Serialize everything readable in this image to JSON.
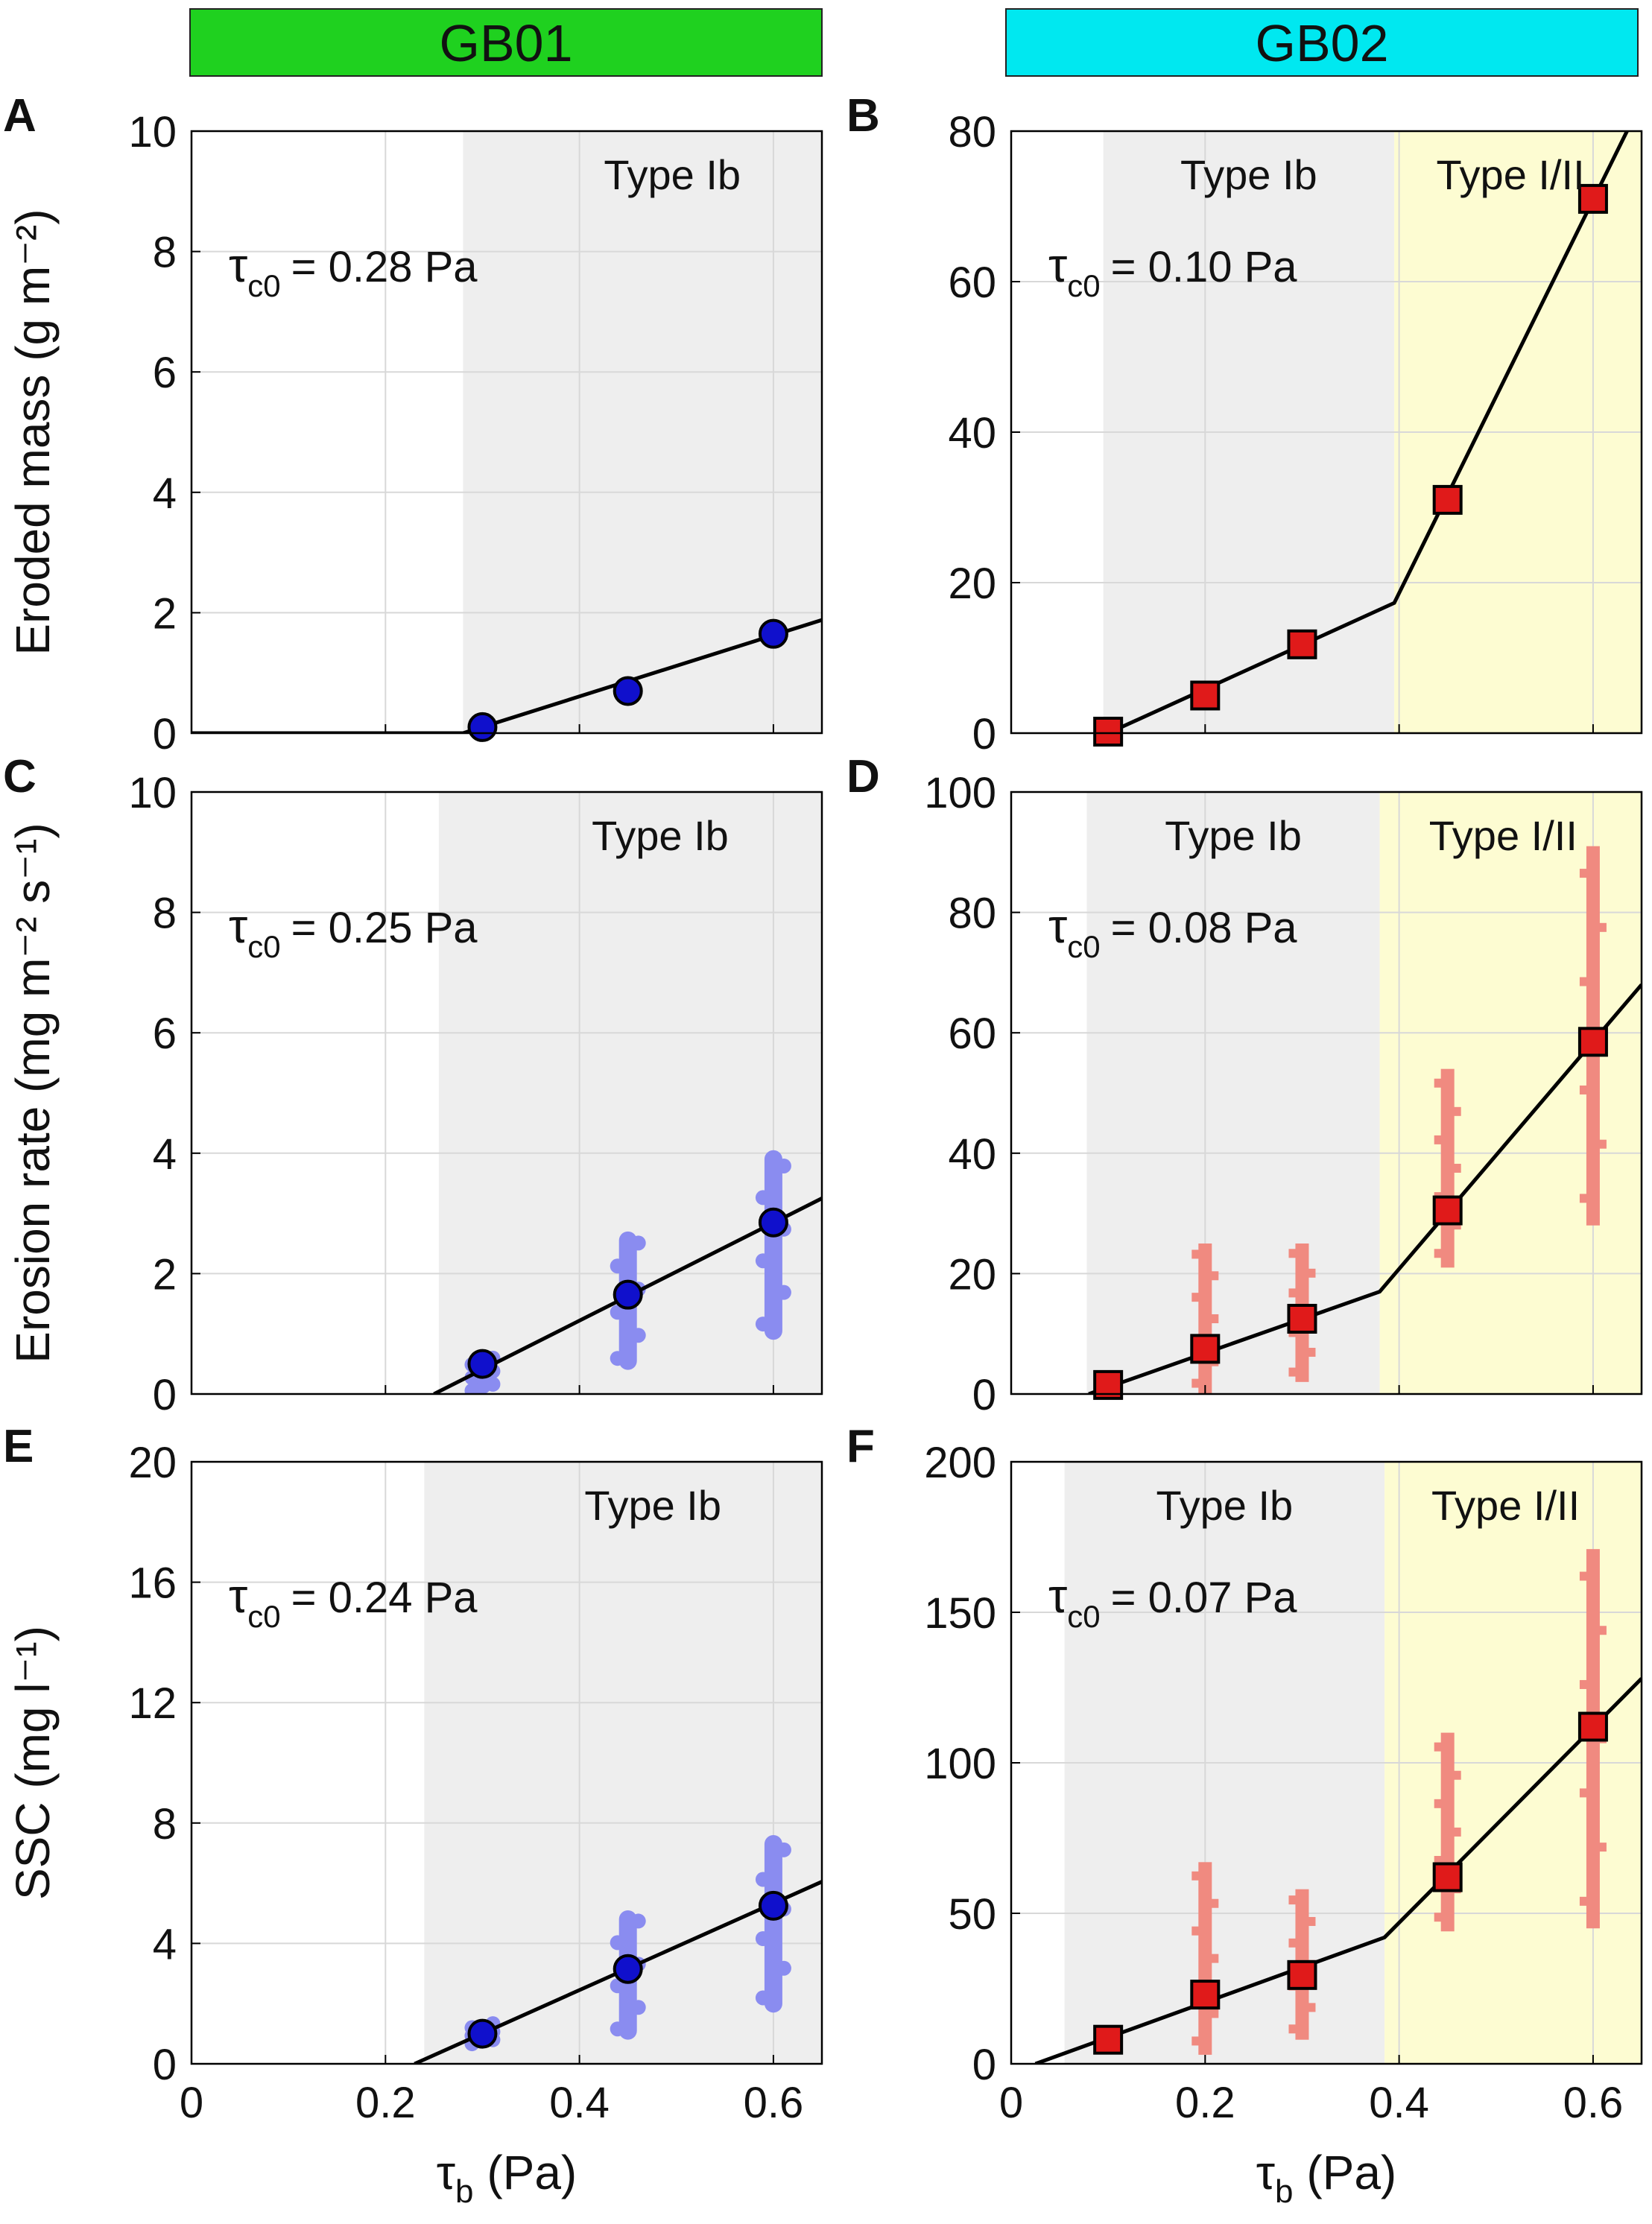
{
  "headers": [
    {
      "label": "GB01",
      "color": "#1fd11f"
    },
    {
      "label": "GB02",
      "color": "#00e8f0"
    }
  ],
  "colors": {
    "gb01_marker": "#1010cc",
    "gb01_scatter": "#8a8cf0",
    "gb02_marker": "#e01a1a",
    "gb02_scatter": "#f08a80",
    "typeIb_shade": "#eeeeee",
    "typeI_II_shade": "#fdfcd2"
  },
  "chart_data": [
    {
      "panel": "A",
      "site": "GB01",
      "type": "scatter",
      "ylabel": "Eroded mass (g m⁻²)",
      "xlabel": "",
      "xlim": [
        0,
        0.65
      ],
      "ylim": [
        0,
        10
      ],
      "xticks": [
        "0",
        "0.2",
        "0.4",
        "0.6"
      ],
      "yticks": [
        0,
        2,
        4,
        6,
        8,
        10
      ],
      "annotation": {
        "symbol": "τ",
        "sub": "c0",
        "text": "= 0.28 Pa"
      },
      "regions": [
        {
          "label": "Type Ib",
          "from": 0.28,
          "to": 0.65,
          "kind": "Ib"
        }
      ],
      "points": [
        {
          "x": 0.3,
          "y": 0.1
        },
        {
          "x": 0.45,
          "y": 0.7
        },
        {
          "x": 0.6,
          "y": 1.65
        }
      ],
      "fit": [
        [
          0,
          0
        ],
        [
          0.28,
          0
        ],
        [
          0.65,
          1.88
        ]
      ],
      "spread": []
    },
    {
      "panel": "B",
      "site": "GB02",
      "type": "scatter",
      "ylabel": "",
      "xlabel": "",
      "xlim": [
        0,
        0.65
      ],
      "ylim": [
        0,
        80
      ],
      "xticks": [
        "0",
        "0.2",
        "0.4",
        "0.6"
      ],
      "yticks": [
        0,
        20,
        40,
        60,
        80
      ],
      "annotation": {
        "symbol": "τ",
        "sub": "c0",
        "text": "= 0.10 Pa"
      },
      "regions": [
        {
          "label": "Type Ib",
          "from": 0.095,
          "to": 0.395,
          "kind": "Ib"
        },
        {
          "label": "Type I/II",
          "from": 0.395,
          "to": 0.65,
          "kind": "I/II"
        }
      ],
      "points": [
        {
          "x": 0.1,
          "y": 0.2
        },
        {
          "x": 0.2,
          "y": 5.0
        },
        {
          "x": 0.3,
          "y": 11.8
        },
        {
          "x": 0.45,
          "y": 31.0
        },
        {
          "x": 0.6,
          "y": 71.0
        }
      ],
      "fit": [
        [
          0.1,
          0
        ],
        [
          0.395,
          17.3
        ],
        [
          0.635,
          80
        ]
      ],
      "spread": []
    },
    {
      "panel": "C",
      "site": "GB01",
      "type": "scatter",
      "ylabel": "Erosion rate (mg m⁻² s⁻¹)",
      "xlabel": "",
      "xlim": [
        0,
        0.65
      ],
      "ylim": [
        0,
        10
      ],
      "xticks": [
        "0",
        "0.2",
        "0.4",
        "0.6"
      ],
      "yticks": [
        0,
        2,
        4,
        6,
        8,
        10
      ],
      "annotation": {
        "symbol": "τ",
        "sub": "c0",
        "text": "= 0.25 Pa"
      },
      "regions": [
        {
          "label": "Type Ib",
          "from": 0.255,
          "to": 0.65,
          "kind": "Ib"
        }
      ],
      "points": [
        {
          "x": 0.3,
          "y": 0.5
        },
        {
          "x": 0.45,
          "y": 1.65
        },
        {
          "x": 0.6,
          "y": 2.85
        }
      ],
      "fit": [
        [
          0.25,
          0
        ],
        [
          0.65,
          3.25
        ]
      ],
      "spread": [
        {
          "x": 0.3,
          "ymin": 0.0,
          "ymax": 0.65
        },
        {
          "x": 0.45,
          "ymin": 0.4,
          "ymax": 2.7
        },
        {
          "x": 0.6,
          "ymin": 0.9,
          "ymax": 4.05
        }
      ]
    },
    {
      "panel": "D",
      "site": "GB02",
      "type": "scatter",
      "ylabel": "",
      "xlabel": "",
      "xlim": [
        0,
        0.65
      ],
      "ylim": [
        0,
        100
      ],
      "xticks": [
        "0",
        "0.2",
        "0.4",
        "0.6"
      ],
      "yticks": [
        0,
        20,
        40,
        60,
        80,
        100
      ],
      "annotation": {
        "symbol": "τ",
        "sub": "c0",
        "text": "= 0.08 Pa"
      },
      "regions": [
        {
          "label": "Type Ib",
          "from": 0.078,
          "to": 0.38,
          "kind": "Ib"
        },
        {
          "label": "Type I/II",
          "from": 0.38,
          "to": 0.65,
          "kind": "I/II"
        }
      ],
      "points": [
        {
          "x": 0.1,
          "y": 1.5
        },
        {
          "x": 0.2,
          "y": 7.5
        },
        {
          "x": 0.3,
          "y": 12.5
        },
        {
          "x": 0.45,
          "y": 30.5
        },
        {
          "x": 0.6,
          "y": 58.5
        }
      ],
      "fit": [
        [
          0.08,
          0
        ],
        [
          0.38,
          17.0
        ],
        [
          0.65,
          68.0
        ]
      ],
      "spread": [
        {
          "x": 0.2,
          "ymin": 0.0,
          "ymax": 25.0
        },
        {
          "x": 0.3,
          "ymin": 2.0,
          "ymax": 25.0
        },
        {
          "x": 0.45,
          "ymin": 21.0,
          "ymax": 54.0
        },
        {
          "x": 0.6,
          "ymin": 28.0,
          "ymax": 91.0
        }
      ]
    },
    {
      "panel": "E",
      "site": "GB01",
      "type": "scatter",
      "ylabel": "SSC (mg l⁻¹)",
      "xlabel": "τb (Pa)",
      "xlim": [
        0,
        0.65
      ],
      "ylim": [
        0,
        20
      ],
      "xticks": [
        "0",
        "0.2",
        "0.4",
        "0.6"
      ],
      "yticks": [
        0,
        4,
        8,
        12,
        16,
        20
      ],
      "annotation": {
        "symbol": "τ",
        "sub": "c0",
        "text": "= 0.24 Pa"
      },
      "regions": [
        {
          "label": "Type Ib",
          "from": 0.24,
          "to": 0.65,
          "kind": "Ib"
        }
      ],
      "points": [
        {
          "x": 0.3,
          "y": 1.0
        },
        {
          "x": 0.45,
          "y": 3.15
        },
        {
          "x": 0.6,
          "y": 5.25
        }
      ],
      "fit": [
        [
          0.23,
          0
        ],
        [
          0.65,
          6.05
        ]
      ],
      "spread": [
        {
          "x": 0.3,
          "ymin": 0.6,
          "ymax": 1.4
        },
        {
          "x": 0.45,
          "ymin": 0.8,
          "ymax": 5.1
        },
        {
          "x": 0.6,
          "ymin": 1.7,
          "ymax": 7.6
        }
      ]
    },
    {
      "panel": "F",
      "site": "GB02",
      "type": "scatter",
      "ylabel": "",
      "xlabel": "τb (Pa)",
      "xlim": [
        0,
        0.65
      ],
      "ylim": [
        0,
        200
      ],
      "xticks": [
        "0",
        "0.2",
        "0.4",
        "0.6"
      ],
      "yticks": [
        0,
        50,
        100,
        150,
        200
      ],
      "annotation": {
        "symbol": "τ",
        "sub": "c0",
        "text": "= 0.07 Pa"
      },
      "regions": [
        {
          "label": "Type Ib",
          "from": 0.055,
          "to": 0.385,
          "kind": "Ib"
        },
        {
          "label": "Type I/II",
          "from": 0.385,
          "to": 0.65,
          "kind": "I/II"
        }
      ],
      "points": [
        {
          "x": 0.1,
          "y": 8.0
        },
        {
          "x": 0.2,
          "y": 23.0
        },
        {
          "x": 0.3,
          "y": 29.5
        },
        {
          "x": 0.45,
          "y": 62.0
        },
        {
          "x": 0.6,
          "y": 112.0
        }
      ],
      "fit": [
        [
          0.025,
          0
        ],
        [
          0.385,
          42.0
        ],
        [
          0.65,
          128.0
        ]
      ],
      "spread": [
        {
          "x": 0.1,
          "ymin": 5.0,
          "ymax": 11.0
        },
        {
          "x": 0.2,
          "ymin": 3.0,
          "ymax": 67.0
        },
        {
          "x": 0.3,
          "ymin": 8.0,
          "ymax": 58.0
        },
        {
          "x": 0.45,
          "ymin": 44.0,
          "ymax": 110.0
        },
        {
          "x": 0.6,
          "ymin": 45.0,
          "ymax": 171.0
        }
      ]
    }
  ]
}
